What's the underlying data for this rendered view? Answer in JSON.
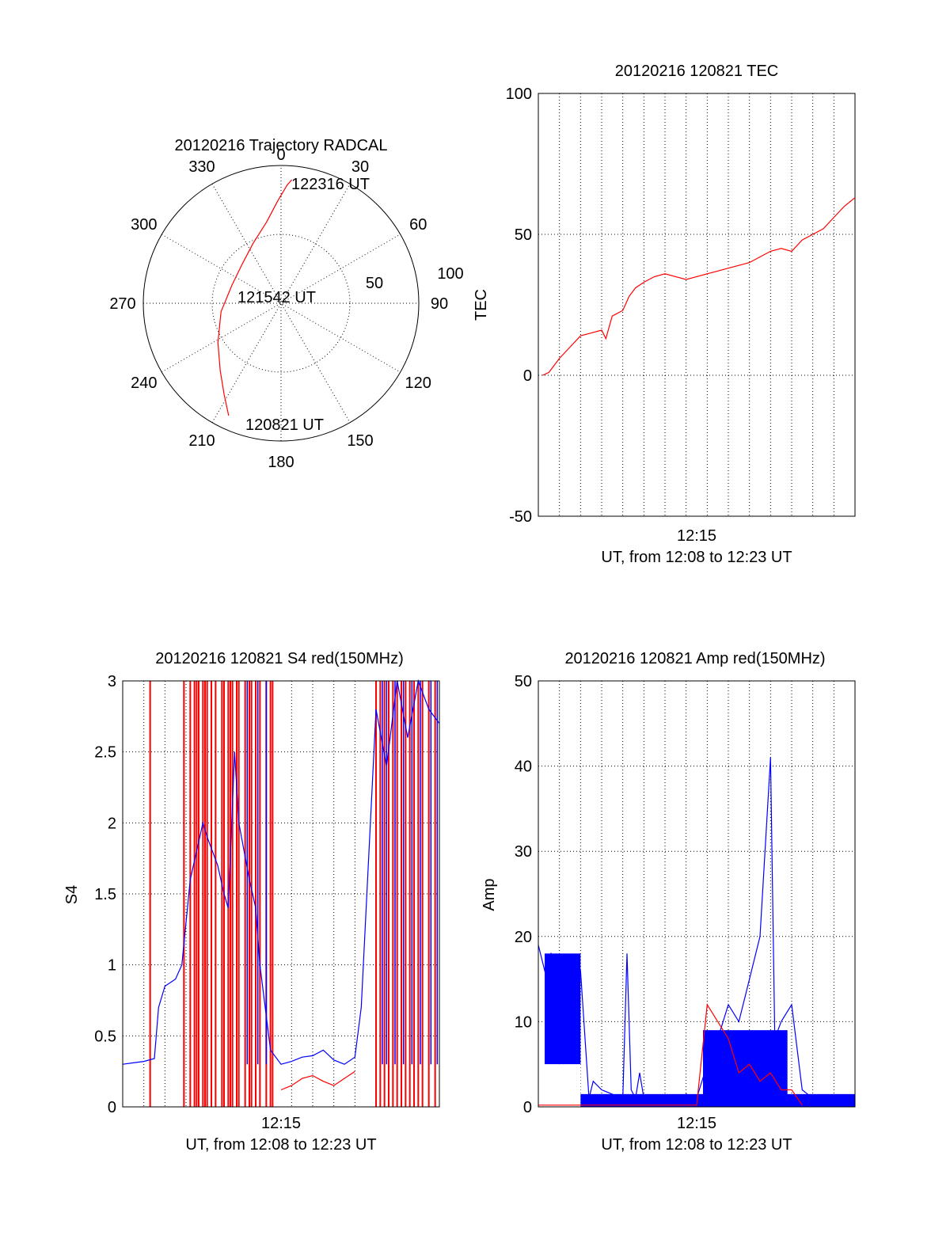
{
  "chart_data": [
    {
      "type": "polar",
      "title": "20120216 Trajectory RADCAL",
      "azimuth_labels": [
        "0",
        "30",
        "60",
        "90",
        "120",
        "150",
        "180",
        "210",
        "240",
        "270",
        "300",
        "330"
      ],
      "radial_labels": [
        "50",
        "100"
      ],
      "rlim": [
        0,
        100
      ],
      "annotations": [
        "122316 UT",
        "121542 UT",
        "120821 UT"
      ],
      "trajectory": {
        "azimuth": [
          205,
          212,
          222,
          238,
          262,
          290,
          315,
          335,
          350,
          358,
          3,
          5
        ],
        "zenith": [
          90,
          78,
          66,
          54,
          44,
          38,
          40,
          48,
          60,
          74,
          86,
          90
        ]
      },
      "colors": {
        "trajectory": "#ff0000",
        "axes": "#000000"
      }
    },
    {
      "type": "line",
      "title": "20120216 120821 TEC",
      "xlabel": "UT, from 12:08 to 12:23 UT",
      "ylabel": "TEC",
      "xtick_label": "12:15",
      "ylim": [
        -50,
        100
      ],
      "yticks": [
        "-50",
        "0",
        "50",
        "100"
      ],
      "grid": true,
      "series": [
        {
          "color": "#ff0000",
          "x_min": [
            0.2,
            0.5,
            1.0,
            1.5,
            2.0,
            2.5,
            3.0,
            3.2,
            3.5,
            4.0,
            4.3,
            4.6,
            5.0,
            5.5,
            6.0,
            6.5,
            7.0,
            7.5,
            8.0,
            8.5,
            9.0,
            9.5,
            10.0,
            10.5,
            11.0,
            11.5,
            12.0,
            12.5,
            13.0,
            13.5,
            14.0,
            14.5,
            15.0
          ],
          "values": [
            0,
            1,
            6,
            10,
            14,
            15,
            16,
            13,
            21,
            23,
            28,
            31,
            33,
            35,
            36,
            35,
            34,
            35,
            36,
            37,
            38,
            39,
            40,
            42,
            44,
            45,
            44,
            48,
            50,
            52,
            56,
            60,
            63
          ]
        }
      ]
    },
    {
      "type": "line",
      "title": "20120216 120821 S4 red(150MHz)",
      "xlabel": "UT, from 12:08 to 12:23 UT",
      "ylabel": "S4",
      "xtick_label": "12:15",
      "ylim": [
        0,
        3
      ],
      "yticks": [
        "0",
        "0.5",
        "1",
        "1.5",
        "2",
        "2.5",
        "3"
      ],
      "grid": true,
      "series": [
        {
          "color": "#0000ff",
          "x_min": [
            0,
            0.5,
            1.0,
            1.5,
            1.7,
            2.0,
            2.5,
            2.8,
            3.0,
            3.2,
            3.5,
            3.8,
            4.0,
            4.5,
            4.8,
            5.0,
            5.3,
            5.5,
            6.0,
            6.3,
            6.5,
            7.0,
            7.5,
            8.0,
            8.5,
            9.0,
            9.5,
            10.0,
            10.5,
            11.0,
            11.3,
            11.6,
            12.0,
            12.5,
            13.0,
            13.5,
            14.0,
            14.5,
            15.0
          ],
          "values": [
            0.3,
            0.31,
            0.32,
            0.34,
            0.7,
            0.85,
            0.9,
            1.0,
            1.3,
            1.6,
            1.8,
            2.0,
            1.9,
            1.7,
            1.5,
            1.4,
            2.5,
            2.0,
            1.6,
            1.4,
            1.0,
            0.4,
            0.3,
            0.32,
            0.35,
            0.36,
            0.4,
            0.33,
            0.3,
            0.35,
            0.7,
            1.6,
            2.8,
            2.4,
            3.0,
            2.6,
            3.0,
            2.8,
            2.7
          ]
        },
        {
          "color": "#ff0000",
          "x_min": [
            7.5,
            8.0,
            8.5,
            9.0,
            9.5,
            10.0,
            10.5,
            11.0
          ],
          "values": [
            0.12,
            0.15,
            0.2,
            0.22,
            0.18,
            0.15,
            0.2,
            0.25
          ]
        }
      ],
      "red_spikes_x_min": [
        1.3,
        2.9,
        3.2,
        3.4,
        3.5,
        3.6,
        3.8,
        3.9,
        4.0,
        4.2,
        4.4,
        4.7,
        4.8,
        5.0,
        5.1,
        5.2,
        5.4,
        5.5,
        5.8,
        6.0,
        6.1,
        6.3,
        6.5,
        6.8,
        7.0,
        7.1,
        12.0,
        12.2,
        12.4,
        12.6,
        12.8,
        13.0,
        13.2,
        13.4,
        13.6,
        13.8,
        14.0,
        14.2,
        14.5,
        14.8
      ],
      "blue_spikes_x_min": [
        5.9,
        6.4,
        6.8,
        12.3,
        12.5,
        12.9,
        13.3,
        13.7,
        14.1,
        14.6,
        14.9
      ]
    },
    {
      "type": "line",
      "title": "20120216 120821 Amp red(150MHz)",
      "xlabel": "UT, from 12:08 to 12:23 UT",
      "ylabel": "Amp",
      "xtick_label": "12:15",
      "ylim": [
        0,
        50
      ],
      "yticks": [
        "0",
        "10",
        "20",
        "30",
        "40",
        "50"
      ],
      "grid": true,
      "series": [
        {
          "color": "#0000ff",
          "x_min": [
            0,
            0.3,
            0.6,
            1.0,
            1.5,
            2.0,
            2.4,
            2.6,
            3.0,
            3.5,
            4.0,
            4.2,
            4.4,
            4.6,
            4.8,
            5.0,
            5.2,
            5.5,
            6.0,
            6.5,
            7.0,
            7.5,
            8.0,
            8.5,
            9.0,
            9.5,
            10.0,
            10.5,
            11.0,
            11.2,
            11.5,
            12.0,
            12.5,
            13.0,
            13.5,
            14.0,
            14.5,
            15.0
          ],
          "values": [
            19,
            16,
            18,
            15,
            17,
            16,
            1,
            3,
            2,
            1.5,
            1,
            18,
            2,
            1,
            4,
            1,
            1,
            1,
            0.8,
            1,
            1.5,
            1,
            5,
            8,
            12,
            10,
            15,
            20,
            41,
            8,
            10,
            12,
            2,
            1,
            1,
            0.8,
            1,
            1
          ]
        },
        {
          "color": "#ff0000",
          "x_min": [
            0,
            2.0,
            2.4,
            7.5,
            8.0,
            8.5,
            9.0,
            9.5,
            10.0,
            10.5,
            11.0,
            11.5,
            12.0,
            12.5
          ],
          "values": [
            0.2,
            0.2,
            0.2,
            0.2,
            12,
            10,
            8,
            4,
            5,
            3,
            4,
            2,
            2,
            0.2
          ]
        }
      ]
    }
  ]
}
